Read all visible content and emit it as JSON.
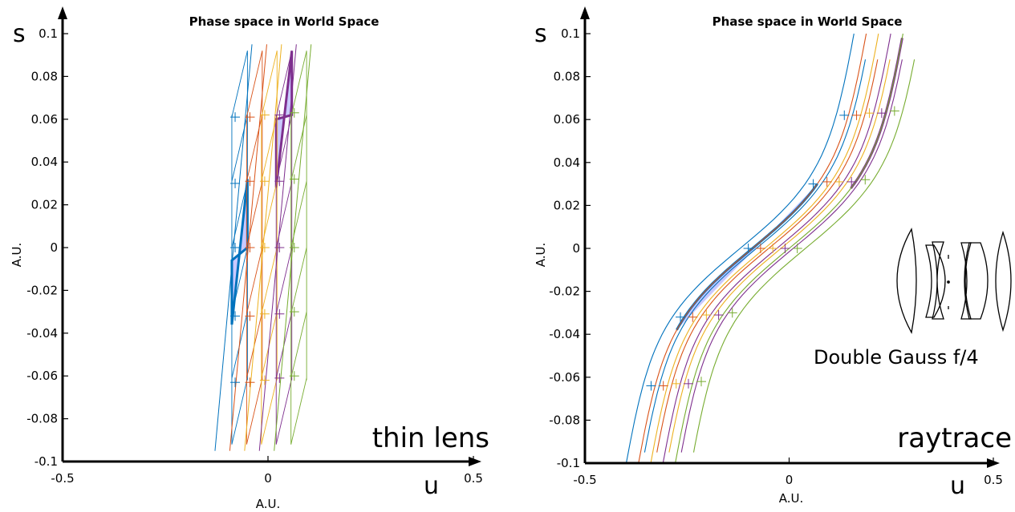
{
  "colors": {
    "blue": "#0072bd",
    "red": "#d95319",
    "yellow": "#edb120",
    "purple": "#7e2f8e",
    "green": "#77ac30",
    "fill": "#c9c9ff",
    "axis": "#000000"
  },
  "lens_caption": "Double Gauss f/4",
  "chart_data": [
    {
      "type": "line",
      "title": "Phase space in World Space",
      "xlabel": "A.U.",
      "ylabel": "A.U.",
      "x_symbol": "u",
      "y_symbol": "s",
      "corner_label": "thin lens",
      "xlim": [
        -0.5,
        0.5
      ],
      "ylim": [
        -0.1,
        0.1
      ],
      "xticks": [
        "-0.5",
        "0",
        "0.5"
      ],
      "yticks": [
        "-0.1",
        "-0.08",
        "-0.06",
        "-0.04",
        "-0.02",
        "0",
        "0.02",
        "0.04",
        "0.06",
        "0.08",
        "0.1"
      ],
      "grid": false,
      "series": [
        {
          "color": "blue",
          "u_offset": -0.084,
          "markers_s": [
            -0.063,
            -0.032,
            0,
            0.03,
            0.061
          ]
        },
        {
          "color": "red",
          "u_offset": -0.048,
          "markers_s": [
            -0.063,
            -0.032,
            0,
            0.031,
            0.061
          ]
        },
        {
          "color": "yellow",
          "u_offset": -0.012,
          "markers_s": [
            -0.062,
            -0.031,
            0,
            0.031,
            0.062
          ]
        },
        {
          "color": "purple",
          "u_offset": 0.024,
          "markers_s": [
            -0.061,
            -0.031,
            0,
            0.031,
            0.062
          ]
        },
        {
          "color": "green",
          "u_offset": 0.06,
          "markers_s": [
            -0.06,
            -0.03,
            0,
            0.032,
            0.063
          ]
        }
      ]
    },
    {
      "type": "line",
      "title": "Phase space in World Space",
      "xlabel": "A.U.",
      "ylabel": "A.U.",
      "x_symbol": "u",
      "y_symbol": "s",
      "corner_label": "raytrace",
      "xlim": [
        -0.5,
        0.5
      ],
      "ylim": [
        -0.1,
        0.1
      ],
      "xticks": [
        "-0.5",
        "0",
        "0.5"
      ],
      "yticks": [
        "-0.1",
        "-0.08",
        "-0.06",
        "-0.04",
        "-0.02",
        "0",
        "0.02",
        "0.04",
        "0.06",
        "0.08",
        "0.1"
      ],
      "grid": false,
      "series": [
        {
          "color": "blue",
          "u_offset": -0.12,
          "markers_s": [
            -0.064,
            -0.032,
            0,
            0.03,
            0.062
          ]
        },
        {
          "color": "red",
          "u_offset": -0.09,
          "markers_s": [
            -0.064,
            -0.032,
            0,
            0.031,
            0.062
          ]
        },
        {
          "color": "yellow",
          "u_offset": -0.06,
          "markers_s": [
            -0.063,
            -0.031,
            0,
            0.031,
            0.063
          ]
        },
        {
          "color": "purple",
          "u_offset": -0.03,
          "markers_s": [
            -0.063,
            -0.031,
            0,
            0.031,
            0.063
          ]
        },
        {
          "color": "green",
          "u_offset": 0.0,
          "markers_s": [
            -0.062,
            -0.03,
            0,
            0.032,
            0.064
          ]
        }
      ]
    }
  ]
}
